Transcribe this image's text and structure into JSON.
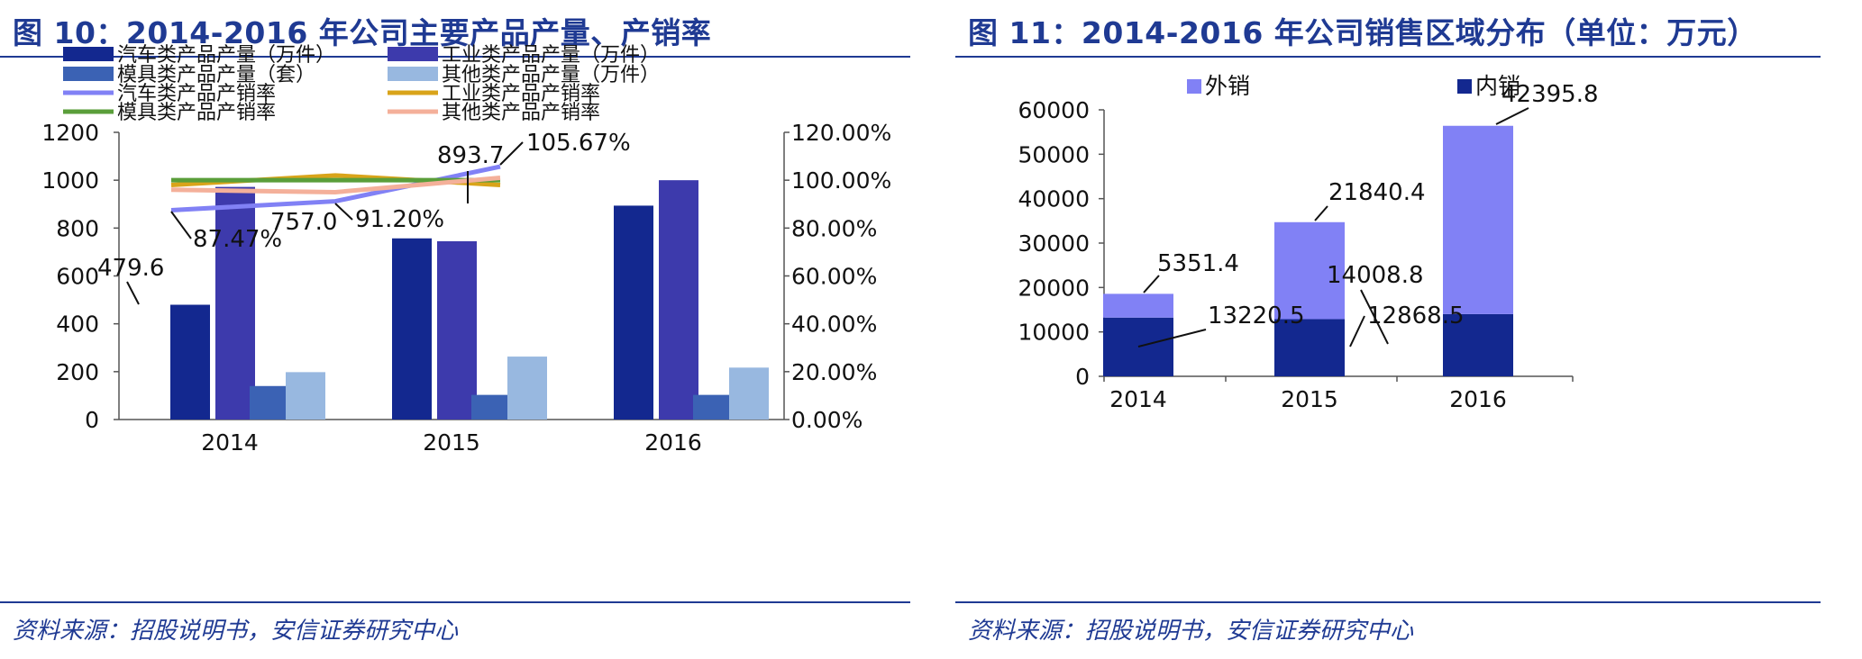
{
  "left_panel": {
    "title": "图 10：2014-2016 年公司主要产品产量、产销率",
    "source": "资料来源：招股说明书，安信证券研究中心"
  },
  "right_panel": {
    "title": "图 11：2014-2016 年公司销售区域分布（单位：万元）",
    "source": "资料来源：招股说明书，安信证券研究中心"
  },
  "chart_data": [
    {
      "type": "bar",
      "categories": [
        "2014",
        "2015",
        "2016"
      ],
      "ylim": [
        0,
        1200
      ],
      "yticks": [
        "0",
        "200",
        "400",
        "600",
        "800",
        "1000",
        "1200"
      ],
      "y2lim": [
        0,
        120
      ],
      "y2ticks": [
        "0.00%",
        "20.00%",
        "40.00%",
        "60.00%",
        "80.00%",
        "100.00%",
        "120.00%"
      ],
      "series": [
        {
          "name": "汽车类产品产量（万件）",
          "kind": "bar",
          "color": "#13288f",
          "values": [
            479.6,
            757.0,
            893.7
          ]
        },
        {
          "name": "工业类产品产量（万件）",
          "kind": "bar",
          "color": "#3d3aac",
          "values": [
            972,
            745,
            1000
          ]
        },
        {
          "name": "模具类产品产量（套）",
          "kind": "bar",
          "color": "#3b62b4",
          "values": [
            140,
            103,
            103
          ]
        },
        {
          "name": "其他类产品产量（万件）",
          "kind": "bar",
          "color": "#98b8e0",
          "values": [
            198,
            263,
            217
          ]
        },
        {
          "name": "汽车类产品产销率",
          "kind": "line",
          "axis": "y2",
          "color": "#8181f5",
          "values": [
            87.47,
            91.2,
            105.67
          ]
        },
        {
          "name": "工业类产品产销率",
          "kind": "line",
          "axis": "y2",
          "color": "#d9a41a",
          "values": [
            98.0,
            102.0,
            98.0
          ]
        },
        {
          "name": "模具类产品产销率",
          "kind": "line",
          "axis": "y2",
          "color": "#5a9e3a",
          "values": [
            100.0,
            100.0,
            100.0
          ]
        },
        {
          "name": "其他类产品产销率",
          "kind": "line",
          "axis": "y2",
          "color": "#f4b09a",
          "values": [
            96.0,
            95.0,
            101.0
          ]
        }
      ],
      "data_labels": [
        "479.6",
        "757.0",
        "893.7",
        "87.47%",
        "91.20%",
        "105.67%"
      ],
      "legend": "top",
      "grid": false
    },
    {
      "type": "bar",
      "stacked": true,
      "categories": [
        "2014",
        "2015",
        "2016"
      ],
      "ylim": [
        0,
        60000
      ],
      "yticks": [
        "0",
        "10000",
        "20000",
        "30000",
        "40000",
        "50000",
        "60000"
      ],
      "series": [
        {
          "name": "内销",
          "color": "#13288f",
          "values": [
            13220.5,
            12868.5,
            14008.8
          ],
          "labels": [
            "13220.5",
            "12868.5",
            "14008.8"
          ]
        },
        {
          "name": "外销",
          "color": "#8181f5",
          "values": [
            5351.4,
            21840.4,
            42395.8
          ],
          "labels": [
            "5351.4",
            "21840.4",
            "42395.8"
          ]
        }
      ],
      "legend": "top-left",
      "grid": false
    }
  ]
}
